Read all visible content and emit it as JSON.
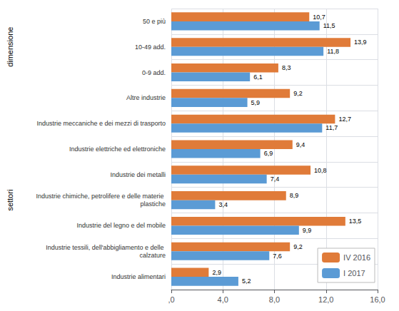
{
  "chart_data": {
    "type": "bar",
    "orientation": "horizontal",
    "categories": [
      "50 e più",
      "10-49 add.",
      "0-9 add.",
      "Altre industrie",
      "Industrie meccaniche e dei mezzi di trasporto",
      "Industrie elettriche ed elettroniche",
      "Industrie dei metalli",
      "Industrie chimiche, petrolifere e delle materie plastiche",
      "Industrie del legno e del mobile",
      "Industrie tessili, dell'abbigliamento e delle calzature",
      "Industrie alimentari"
    ],
    "series": [
      {
        "name": "IV 2016",
        "color": "#E07B39",
        "values": [
          10.7,
          13.9,
          8.3,
          9.2,
          12.7,
          9.4,
          10.8,
          8.9,
          13.5,
          9.2,
          2.9
        ],
        "value_labels": [
          "10,7",
          "13,9",
          "8,3",
          "9,2",
          "12,7",
          "9,4",
          "10,8",
          "8,9",
          "13,5",
          "9,2",
          "2,9"
        ]
      },
      {
        "name": "I 2017",
        "color": "#5B9BD5",
        "values": [
          11.5,
          11.8,
          6.1,
          5.9,
          11.7,
          6.9,
          7.4,
          3.4,
          9.9,
          7.6,
          5.2
        ],
        "value_labels": [
          "11,5",
          "11,8",
          "6,1",
          "5,9",
          "11,7",
          "6,9",
          "7,4",
          "3,4",
          "9,9",
          "7,6",
          "5,2"
        ]
      }
    ],
    "xlim": [
      0,
      16
    ],
    "xticks": [
      {
        "value": 0,
        "label": ",0"
      },
      {
        "value": 4,
        "label": "4,0"
      },
      {
        "value": 8,
        "label": "8,0"
      },
      {
        "value": 12,
        "label": "12,0"
      },
      {
        "value": 16,
        "label": "16,0"
      }
    ],
    "grid": true,
    "legend": "lower right",
    "data_labels": true,
    "annotations": [
      {
        "text": "dimensione",
        "from": "50 e più",
        "to": "0-9 add."
      },
      {
        "text": "settori",
        "from": "Industrie meccaniche e dei mezzi di trasporto",
        "to": "Industrie alimentari"
      }
    ]
  }
}
